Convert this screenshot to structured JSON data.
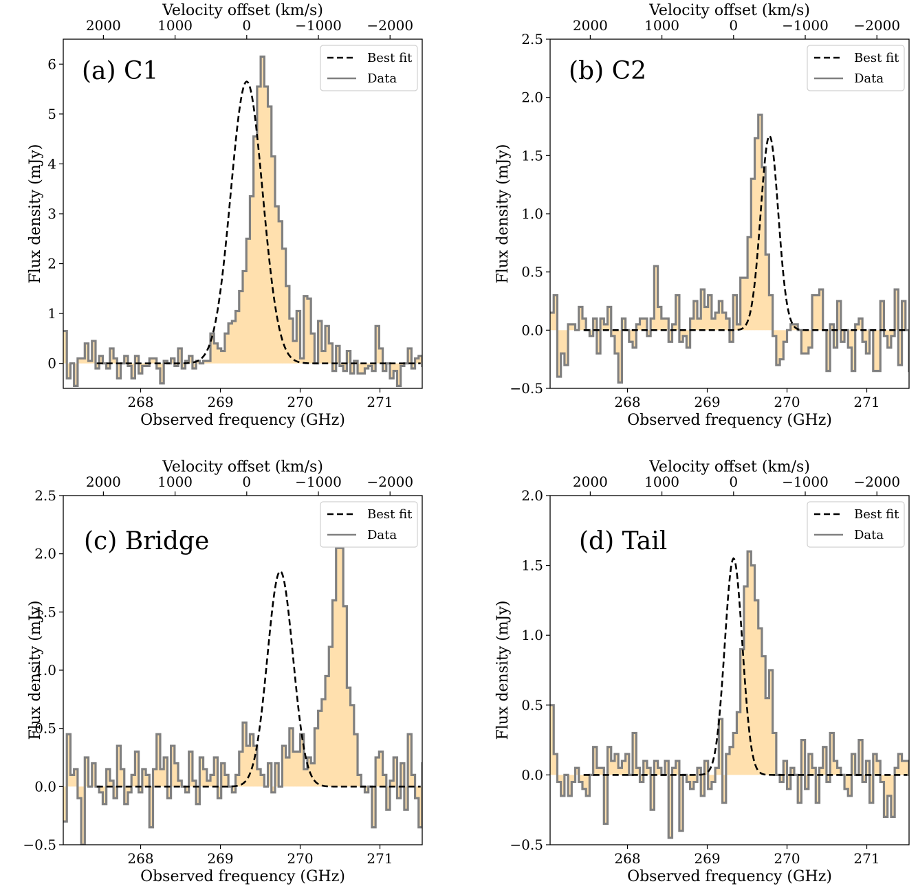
{
  "style": {
    "fill_color": "#ffe0ae",
    "step_color": "#808080",
    "fit_color": "#000000"
  },
  "chart_data": [
    {
      "type": "line",
      "panel_label": "(a) C1",
      "xlabel": "Observed frequency (GHz)",
      "ylabel": "Flux density (mJy)",
      "top_xlabel": "Velocity offset (km/s)",
      "xlim": [
        267.03,
        271.53
      ],
      "ylim": [
        -0.5,
        6.5
      ],
      "xticks": [
        268,
        269,
        270,
        271
      ],
      "xtick_labels": [
        "268",
        "269",
        "270",
        "271"
      ],
      "yticks": [
        0,
        1,
        2,
        3,
        4,
        5,
        6
      ],
      "ytick_labels": [
        "0",
        "1",
        "2",
        "3",
        "4",
        "5",
        "6"
      ],
      "top_xticks": [
        2000,
        1000,
        0,
        -1000,
        -2000
      ],
      "top_xtick_labels": [
        "2000",
        "1000",
        "0",
        "−1000",
        "−2000"
      ],
      "legend": {
        "position": "top-right",
        "entries": [
          "Best fit",
          "Data"
        ]
      },
      "series": [
        {
          "name": "Data",
          "kind": "histogram-step",
          "x_start": 267.03,
          "bin_width": 0.045,
          "values": [
            0.65,
            -0.3,
            0.0,
            -0.45,
            0.1,
            0.1,
            0.4,
            0.05,
            0.45,
            -0.1,
            0.15,
            0.0,
            -0.1,
            0.3,
            0.1,
            -0.3,
            0.0,
            0.15,
            -0.05,
            -0.3,
            0.15,
            -0.2,
            -0.05,
            -0.05,
            0.1,
            0.1,
            -0.1,
            -0.4,
            0.05,
            0.0,
            0.1,
            -0.05,
            0.3,
            -0.1,
            0.05,
            0.15,
            -0.1,
            0.05,
            0.0,
            0.05,
            0.05,
            0.6,
            0.4,
            0.3,
            0.25,
            0.6,
            0.8,
            0.85,
            1.05,
            1.45,
            1.85,
            2.5,
            3.35,
            4.55,
            5.55,
            6.15,
            5.55,
            5.15,
            4.15,
            3.15,
            2.85,
            2.3,
            1.55,
            0.9,
            0.45,
            1.05,
            0.1,
            1.35,
            1.3,
            0.6,
            0.0,
            0.85,
            0.25,
            0.75,
            0.4,
            -0.15,
            0.35,
            -0.05,
            -0.15,
            0.25,
            -0.2,
            0.05,
            -0.2,
            -0.2,
            -0.1,
            -0.05,
            -0.15,
            0.75,
            0.3,
            -0.15,
            0.0,
            -0.3,
            -0.15,
            -0.45,
            -0.05,
            0.0,
            0.3,
            -0.1,
            0.1,
            0.15,
            -0.05,
            0.2,
            -0.3
          ]
        },
        {
          "name": "Best fit",
          "kind": "gaussian",
          "amplitude": 5.65,
          "center": 269.33,
          "sigma": 0.2
        }
      ]
    },
    {
      "type": "line",
      "panel_label": "(b) C2",
      "xlabel": "Observed frequency (GHz)",
      "ylabel": "Flux density (mJy)",
      "top_xlabel": "Velocity offset (km/s)",
      "xlim": [
        267.03,
        271.53
      ],
      "ylim": [
        -0.5,
        2.5
      ],
      "xticks": [
        268,
        269,
        270,
        271
      ],
      "xtick_labels": [
        "268",
        "269",
        "270",
        "271"
      ],
      "yticks": [
        -0.5,
        0.0,
        0.5,
        1.0,
        1.5,
        2.0,
        2.5
      ],
      "ytick_labels": [
        "−0.5",
        "0.0",
        "0.5",
        "1.0",
        "1.5",
        "2.0",
        "2.5"
      ],
      "top_xticks": [
        2000,
        1000,
        0,
        -1000,
        -2000
      ],
      "top_xtick_labels": [
        "2000",
        "1000",
        "0",
        "−1000",
        "−2000"
      ],
      "legend": {
        "position": "top-right",
        "entries": [
          "Best fit",
          "Data"
        ]
      },
      "series": [
        {
          "name": "Data",
          "kind": "histogram-step",
          "x_start": 267.03,
          "bin_width": 0.045,
          "values": [
            0.15,
            0.3,
            -0.4,
            -0.2,
            -0.3,
            0.05,
            0.05,
            0.0,
            0.2,
            0.1,
            0.0,
            -0.05,
            0.1,
            -0.2,
            0.1,
            0.05,
            0.2,
            -0.05,
            -0.2,
            -0.45,
            0.1,
            0.0,
            -0.1,
            -0.15,
            0.05,
            0.1,
            0.1,
            -0.05,
            0.1,
            0.55,
            0.2,
            0.1,
            0.1,
            -0.1,
            0.05,
            0.3,
            -0.1,
            -0.05,
            -0.15,
            0.1,
            0.25,
            0.1,
            0.35,
            0.2,
            0.3,
            0.1,
            0.15,
            0.25,
            0.15,
            0.1,
            -0.1,
            0.3,
            0.05,
            0.45,
            0.45,
            0.8,
            1.3,
            1.65,
            1.85,
            1.4,
            0.65,
            0.3,
            -0.05,
            -0.3,
            -0.25,
            -0.1,
            0.0,
            0.05,
            0.05,
            0.0,
            -0.2,
            -0.2,
            -0.15,
            0.3,
            0.3,
            0.35,
            0.0,
            -0.35,
            0.05,
            -0.15,
            0.25,
            -0.1,
            0.0,
            -0.15,
            -0.35,
            0.05,
            0.1,
            -0.1,
            -0.2,
            0.0,
            -0.35,
            -0.35,
            0.25,
            -0.05,
            -0.15,
            -0.05,
            0.35,
            -0.3,
            0.25,
            0.0,
            -0.35,
            0.05,
            -0.3
          ]
        },
        {
          "name": "Best fit",
          "kind": "gaussian",
          "amplitude": 1.67,
          "center": 269.78,
          "sigma": 0.11
        }
      ]
    },
    {
      "type": "line",
      "panel_label": "(c) Bridge",
      "xlabel": "Observed frequency (GHz)",
      "ylabel": "Flux density (mJy)",
      "top_xlabel": "Velocity offset (km/s)",
      "xlim": [
        267.03,
        271.53
      ],
      "ylim": [
        -0.5,
        2.5
      ],
      "xticks": [
        268,
        269,
        270,
        271
      ],
      "xtick_labels": [
        "268",
        "269",
        "270",
        "271"
      ],
      "yticks": [
        -0.5,
        0.0,
        0.5,
        1.0,
        1.5,
        2.0,
        2.5
      ],
      "ytick_labels": [
        "−0.5",
        "0.0",
        "0.5",
        "1.0",
        "1.5",
        "2.0",
        "2.5"
      ],
      "top_xticks": [
        2000,
        1000,
        0,
        -1000,
        -2000
      ],
      "top_xtick_labels": [
        "2000",
        "1000",
        "0",
        "−1000",
        "−2000"
      ],
      "legend": {
        "position": "top-right",
        "entries": [
          "Best fit",
          "Data"
        ]
      },
      "series": [
        {
          "name": "Data",
          "kind": "histogram-step",
          "x_start": 267.03,
          "bin_width": 0.045,
          "values": [
            -0.3,
            0.45,
            0.1,
            0.15,
            -0.1,
            -0.5,
            0.25,
            0.0,
            0.2,
            0.0,
            -0.05,
            -0.15,
            0.15,
            0.05,
            -0.1,
            0.35,
            0.15,
            -0.15,
            -0.05,
            0.1,
            0.3,
            -0.05,
            0.15,
            0.1,
            -0.35,
            0.15,
            0.45,
            0.15,
            0.25,
            -0.1,
            0.35,
            0.2,
            0.05,
            0.0,
            -0.05,
            0.3,
            0.05,
            -0.15,
            0.25,
            0.15,
            0.05,
            0.1,
            0.25,
            -0.1,
            0.2,
            0.1,
            0.0,
            -0.05,
            0.1,
            0.3,
            0.55,
            0.35,
            0.45,
            0.35,
            0.15,
            0.1,
            0.0,
            0.2,
            -0.05,
            0.2,
            0.0,
            0.35,
            0.25,
            0.5,
            0.3,
            0.3,
            0.45,
            0.15,
            0.25,
            0.2,
            0.5,
            0.65,
            0.75,
            0.95,
            1.2,
            1.6,
            2.05,
            2.05,
            1.55,
            0.85,
            0.7,
            0.45,
            0.1,
            0.0,
            -0.05,
            0.0,
            -0.35,
            0.25,
            0.3,
            0.1,
            -0.2,
            0.05,
            0.25,
            -0.1,
            0.2,
            -0.2,
            0.45,
            0.1,
            -0.1,
            -0.35,
            0.2,
            0.1,
            -0.35
          ]
        },
        {
          "name": "Best fit",
          "kind": "gaussian",
          "amplitude": 1.85,
          "center": 269.75,
          "sigma": 0.16
        }
      ]
    },
    {
      "type": "line",
      "panel_label": "(d) Tail",
      "xlabel": "Observed frequency (GHz)",
      "ylabel": "Flux density (mJy)",
      "top_xlabel": "Velocity offset (km/s)",
      "xlim": [
        267.03,
        271.53
      ],
      "ylim": [
        -0.5,
        2.0
      ],
      "xticks": [
        268,
        269,
        270,
        271
      ],
      "xtick_labels": [
        "268",
        "269",
        "270",
        "271"
      ],
      "yticks": [
        -0.5,
        0.0,
        0.5,
        1.0,
        1.5,
        2.0
      ],
      "ytick_labels": [
        "−0.5",
        "0.0",
        "0.5",
        "1.0",
        "1.5",
        "2.0"
      ],
      "top_xticks": [
        2000,
        1000,
        0,
        -1000,
        -2000
      ],
      "top_xtick_labels": [
        "2000",
        "1000",
        "0",
        "−1000",
        "−2000"
      ],
      "legend": {
        "position": "top-right",
        "entries": [
          "Best fit",
          "Data"
        ]
      },
      "series": [
        {
          "name": "Data",
          "kind": "histogram-step",
          "x_start": 267.03,
          "bin_width": 0.045,
          "values": [
            0.5,
            0.15,
            -0.05,
            -0.15,
            0.0,
            -0.15,
            -0.05,
            0.05,
            -0.05,
            -0.1,
            -0.15,
            0.0,
            0.2,
            0.05,
            0.05,
            -0.35,
            0.2,
            0.1,
            0.15,
            0.05,
            0.1,
            0.15,
            0.0,
            0.3,
            0.05,
            -0.05,
            0.1,
            0.05,
            -0.25,
            0.1,
            0.05,
            0.0,
            0.1,
            -0.45,
            0.05,
            0.1,
            -0.4,
            0.0,
            -0.05,
            -0.1,
            -0.05,
            0.05,
            -0.15,
            0.1,
            -0.1,
            -0.05,
            0.05,
            0.4,
            -0.2,
            0.15,
            0.2,
            0.3,
            0.45,
            0.9,
            1.35,
            1.6,
            1.5,
            1.25,
            1.05,
            0.85,
            0.55,
            0.75,
            0.3,
            0.0,
            -0.05,
            0.1,
            -0.1,
            0.05,
            0.0,
            -0.2,
            0.25,
            -0.1,
            0.15,
            0.05,
            -0.2,
            0.05,
            0.2,
            -0.05,
            0.3,
            0.1,
            0.05,
            0.0,
            -0.1,
            -0.15,
            0.15,
            0.0,
            0.25,
            -0.05,
            0.1,
            -0.2,
            0.15,
            0.1,
            -0.05,
            -0.3,
            -0.15,
            -0.3,
            0.05,
            0.15,
            0.1,
            0.1,
            0.0,
            0.45,
            0.0,
            -0.1
          ]
        },
        {
          "name": "Best fit",
          "kind": "gaussian",
          "amplitude": 1.55,
          "center": 269.33,
          "sigma": 0.11
        }
      ]
    }
  ]
}
